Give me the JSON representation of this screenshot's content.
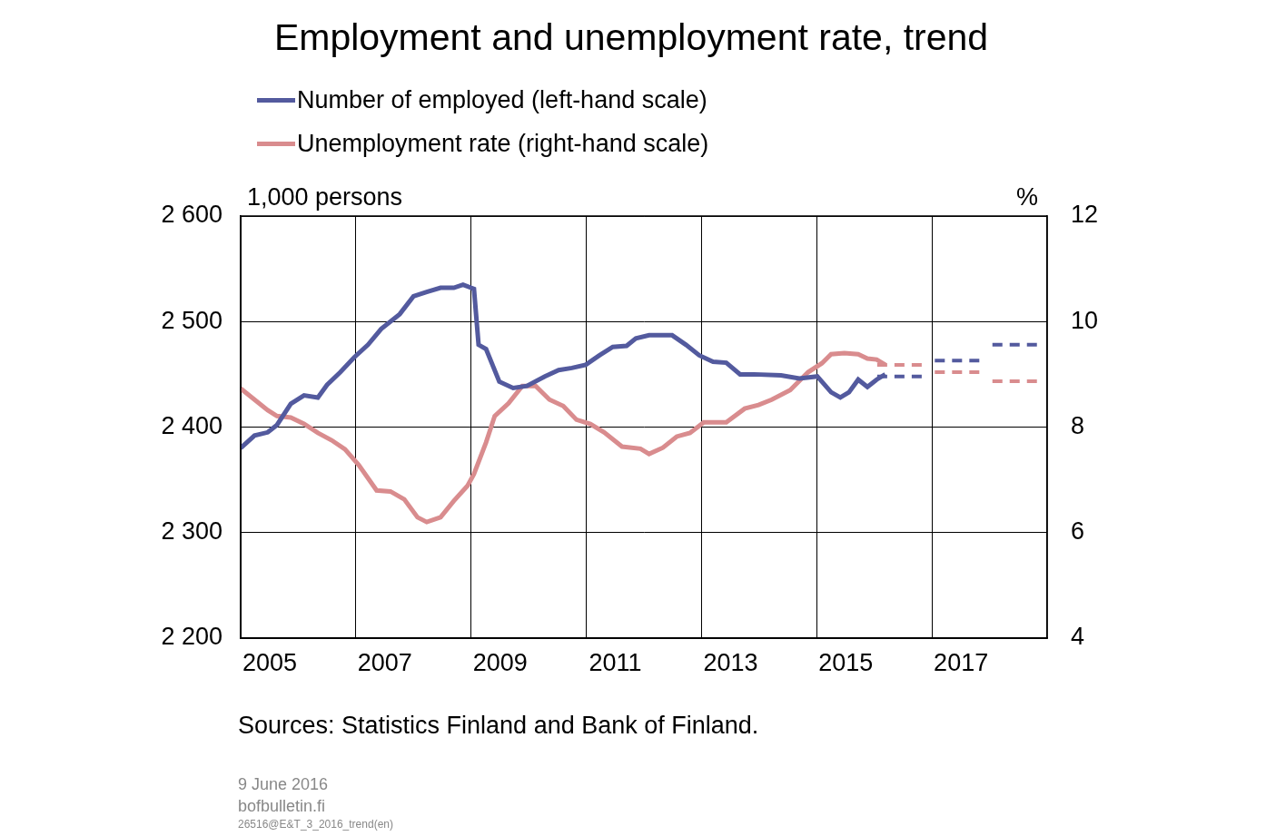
{
  "chart_data": {
    "type": "line",
    "title": "Employment and unemployment rate, trend",
    "y_label": "1,000 persons",
    "y2_label": "%",
    "source": "Sources: Statistics Finland and Bank of Finland.",
    "footer": [
      "9 June 2016",
      "bofbulletin.fi",
      "26516@E&T_3_2016_trend(en)"
    ],
    "xlim": [
      2005,
      2019
    ],
    "xticks": [
      2005,
      2007,
      2009,
      2011,
      2013,
      2015,
      2017
    ],
    "ylim": [
      2200,
      2600
    ],
    "yticks": [
      {
        "value": 2200,
        "label": "2 200"
      },
      {
        "value": 2300,
        "label": "2 300"
      },
      {
        "value": 2400,
        "label": "2 400"
      },
      {
        "value": 2500,
        "label": "2 500"
      },
      {
        "value": 2600,
        "label": "2 600"
      }
    ],
    "y2lim": [
      4,
      12
    ],
    "y2ticks": [
      4,
      6,
      8,
      10,
      12
    ],
    "grid": true,
    "legend": "top",
    "series": [
      {
        "name": "Number of employed (left-hand scale)",
        "color": "#535a9e",
        "axis": "y",
        "line_style": "solid",
        "x": [
          2005.0,
          2005.24,
          2005.47,
          2005.63,
          2005.87,
          2006.1,
          2006.34,
          2006.5,
          2006.73,
          2006.97,
          2007.21,
          2007.44,
          2007.76,
          2008.0,
          2008.23,
          2008.47,
          2008.7,
          2008.86,
          2009.05,
          2009.13,
          2009.26,
          2009.49,
          2009.73,
          2009.97,
          2010.28,
          2010.52,
          2010.75,
          2010.99,
          2011.23,
          2011.46,
          2011.7,
          2011.86,
          2012.09,
          2012.49,
          2012.73,
          2012.96,
          2013.2,
          2013.43,
          2013.67,
          2013.91,
          2014.38,
          2014.7,
          2015.01,
          2015.25,
          2015.41,
          2015.56,
          2015.72,
          2015.88,
          2016.04,
          2016.19
        ],
        "values": [
          2380,
          2392,
          2395,
          2402,
          2422,
          2430,
          2428,
          2440,
          2452,
          2466,
          2478,
          2493,
          2507,
          2524,
          2528,
          2532,
          2532,
          2535,
          2531,
          2478,
          2474,
          2443,
          2437,
          2439,
          2448,
          2454,
          2456,
          2459,
          2468,
          2476,
          2477,
          2484,
          2487,
          2487,
          2478,
          2468,
          2462,
          2461,
          2450,
          2450,
          2449,
          2446,
          2448,
          2433,
          2428,
          2433,
          2445,
          2438,
          2445,
          2450
        ],
        "forecast": {
          "x": [
            2016,
            2017,
            2018
          ],
          "values": [
            2448,
            2463,
            2478
          ],
          "line_style": "dashed"
        }
      },
      {
        "name": "Unemployment rate (right-hand scale)",
        "color": "#d98c8e",
        "axis": "y2",
        "line_style": "solid",
        "x": [
          2005.0,
          2005.24,
          2005.47,
          2005.63,
          2005.87,
          2006.1,
          2006.34,
          2006.58,
          2006.81,
          2007.05,
          2007.36,
          2007.6,
          2007.84,
          2008.07,
          2008.23,
          2008.47,
          2008.7,
          2008.94,
          2009.05,
          2009.26,
          2009.41,
          2009.65,
          2009.89,
          2010.12,
          2010.36,
          2010.6,
          2010.83,
          2011.07,
          2011.31,
          2011.62,
          2011.94,
          2012.09,
          2012.33,
          2012.57,
          2012.8,
          2013.04,
          2013.43,
          2013.75,
          2013.99,
          2014.22,
          2014.54,
          2014.85,
          2015.09,
          2015.25,
          2015.48,
          2015.72,
          2015.88,
          2016.04,
          2016.19
        ],
        "values": [
          8.73,
          8.52,
          8.32,
          8.21,
          8.18,
          8.06,
          7.89,
          7.75,
          7.58,
          7.28,
          6.8,
          6.78,
          6.63,
          6.29,
          6.2,
          6.29,
          6.6,
          6.89,
          7.11,
          7.71,
          8.21,
          8.45,
          8.78,
          8.78,
          8.52,
          8.4,
          8.14,
          8.06,
          7.9,
          7.63,
          7.59,
          7.49,
          7.61,
          7.82,
          7.89,
          8.09,
          8.09,
          8.35,
          8.42,
          8.52,
          8.7,
          9.04,
          9.21,
          9.38,
          9.4,
          9.38,
          9.3,
          9.28,
          9.18
        ],
        "forecast": {
          "x": [
            2016,
            2017,
            2018
          ],
          "values": [
            9.18,
            9.04,
            8.87
          ],
          "line_style": "dashed"
        }
      }
    ]
  }
}
